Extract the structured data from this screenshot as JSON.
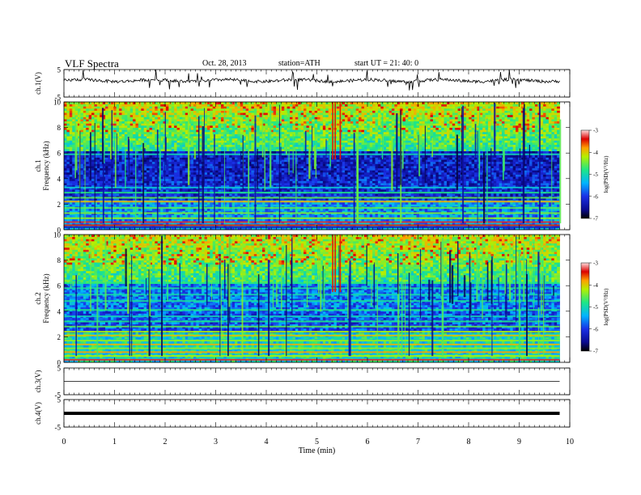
{
  "header": {
    "title": "VLF  Spectra",
    "date": "Oct. 28, 2013",
    "station": "station=ATH",
    "start": "start  UT  =    21: 40: 0"
  },
  "colors": {
    "spectrum_stops": [
      "#000000",
      "#0a0a90",
      "#1a30e6",
      "#00b4ff",
      "#1ee687",
      "#b4f000",
      "#ffa000",
      "#dc0000",
      "#ffdcdc"
    ]
  },
  "chart_data": [
    {
      "type": "line",
      "ylabel": "ch.1(V)",
      "ylim": [
        -5,
        5
      ],
      "yticks": [
        "5",
        "-5"
      ],
      "description_level_volts": 1.0,
      "style": "noisy waveform with spikes"
    },
    {
      "type": "heatmap",
      "ylabel_top": "ch.1",
      "ylabel": "Frequency  (kHz)",
      "ylim": [
        0,
        10
      ],
      "yticks": [
        "0",
        "2",
        "4",
        "6",
        "8",
        "10"
      ],
      "colorbar": {
        "label": "log(PSD(V²/Hz)",
        "range": [
          -7,
          -3
        ],
        "ticks": [
          "-3",
          "-4",
          "-5",
          "-6",
          "-7"
        ]
      }
    },
    {
      "type": "heatmap",
      "ylabel_top": "ch.2",
      "ylabel": "Frequency  (kHz)",
      "ylim": [
        0,
        10
      ],
      "yticks": [
        "0",
        "2",
        "4",
        "6",
        "8",
        "10"
      ],
      "colorbar": {
        "label": "log(PSD(V²/Hz)",
        "range": [
          -7,
          -3
        ],
        "ticks": [
          "-3",
          "-4",
          "-5",
          "-6",
          "-7"
        ]
      }
    },
    {
      "type": "line",
      "ylabel": "ch.3(V)",
      "ylim": [
        -5,
        5
      ],
      "yticks": [
        "5",
        "-5"
      ],
      "description_level_volts": 0.0
    },
    {
      "type": "line",
      "ylabel": "ch.4(V)",
      "ylim": [
        -5,
        5
      ],
      "yticks": [
        "5",
        "-5"
      ],
      "description_level_volts": 0.0,
      "style": "thick"
    }
  ],
  "xaxis": {
    "label": "Time  (min)",
    "xlim": [
      0,
      10
    ],
    "ticks": [
      "0",
      "1",
      "2",
      "3",
      "4",
      "5",
      "6",
      "7",
      "8",
      "9",
      "10"
    ],
    "data_end_min": 9.8
  }
}
